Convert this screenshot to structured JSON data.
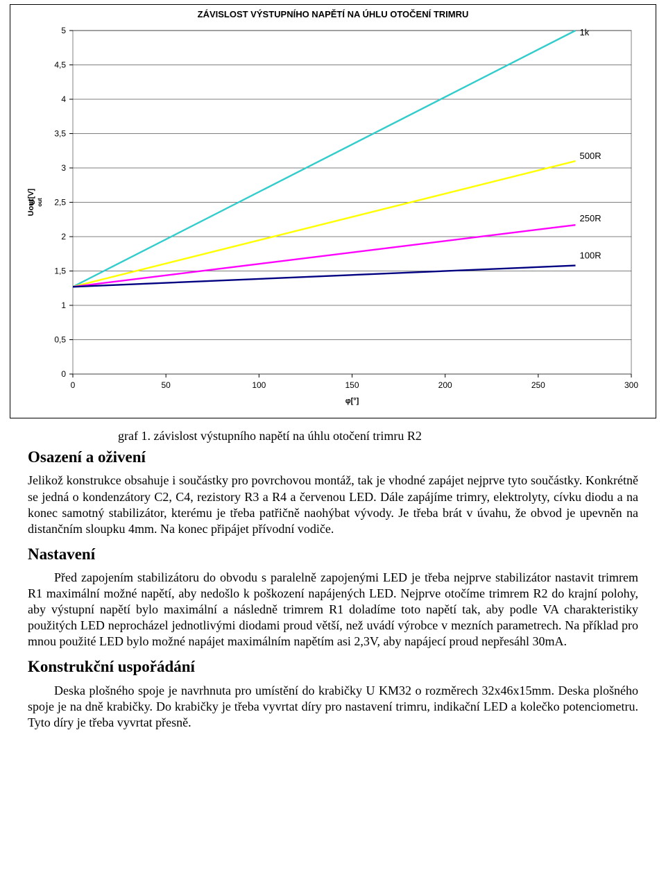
{
  "chart": {
    "type": "line",
    "title": "ZÁVISLOST VÝSTUPNÍHO NAPĚTÍ NA ÚHLU OTOČENÍ TRIMRU",
    "title_fontsize": 13,
    "title_weight": "bold",
    "background_color": "#ffffff",
    "plot_border_color": "#808080",
    "grid_color": "#000000",
    "grid_stroke": 0.6,
    "axis_font": "Arial",
    "axis_label_fontsize": 11,
    "tick_fontsize": 12,
    "series_label_fontsize": 13,
    "xlabel": "φ[°]",
    "ylabel": "Uout[V]",
    "xlim": [
      0,
      300
    ],
    "ylim": [
      0,
      5
    ],
    "xtick_step": 50,
    "ytick_step": 0.5,
    "line_width": 2.4,
    "series": [
      {
        "name": "1k",
        "color": "#33cccc",
        "points": [
          [
            0,
            1.27
          ],
          [
            270,
            5.0
          ]
        ],
        "label_y": 4.85
      },
      {
        "name": "500R",
        "color": "#ffff00",
        "points": [
          [
            0,
            1.27
          ],
          [
            270,
            3.1
          ]
        ],
        "label_y": 3.05
      },
      {
        "name": "250R",
        "color": "#ff00ff",
        "points": [
          [
            0,
            1.27
          ],
          [
            270,
            2.17
          ]
        ],
        "label_y": 2.14
      },
      {
        "name": "100R",
        "color": "#000080",
        "points": [
          [
            0,
            1.27
          ],
          [
            270,
            1.58
          ]
        ],
        "label_y": 1.6
      }
    ]
  },
  "caption": "graf 1. závislost výstupního napětí na úhlu otočení trimru R2",
  "headings": {
    "h1": "Osazení a oživení",
    "h2": "Nastavení",
    "h3": "Konstrukční uspořádání"
  },
  "paragraphs": {
    "p1": "Jelikož konstrukce obsahuje i součástky pro povrchovou montáž, tak je vhodné zapájet nejprve tyto součástky. Konkrétně se jedná o kondenzátory C2, C4, rezistory R3 a R4 a červenou LED. Dále zapájíme trimry, elektrolyty, cívku diodu a na konec samotný stabilizátor, kterému je třeba patřičně naohýbat vývody. Je třeba brát v úvahu, že obvod je upevněn na distančním sloupku 4mm. Na konec připájet přívodní vodiče.",
    "p2": "Před zapojením stabilizátoru do obvodu s paralelně zapojenými LED je třeba nejprve stabilizátor nastavit trimrem R1 maximální možné napětí, aby nedošlo k poškození napájených LED. Nejprve otočíme trimrem R2 do krajní polohy, aby výstupní napětí bylo maximální a následně trimrem R1 doladíme toto napětí tak, aby podle VA charakteristiky použitých LED neprocházel jednotlivými diodami proud větší, než uvádí výrobce v mezních parametrech. Na příklad pro mnou použité LED bylo možné napájet maximálním napětím asi 2,3V, aby napájecí proud nepřesáhl 30mA.",
    "p3": "Deska plošného spoje je navrhnuta pro umístění do krabičky U KM32 o rozměrech 32x46x15mm. Deska plošného spoje je na dně krabičky. Do krabičky je třeba vyvrtat díry pro nastavení trimru, indikační LED a kolečko potenciometru. Tyto díry je třeba vyvrtat přesně."
  }
}
